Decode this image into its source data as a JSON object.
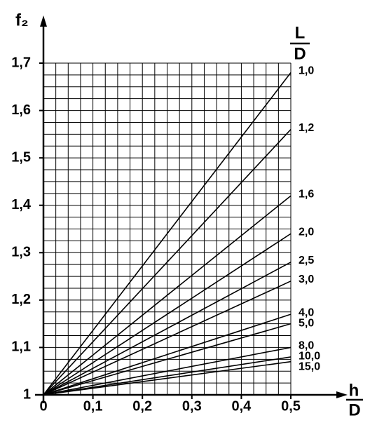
{
  "chart_data": {
    "type": "line",
    "y_label": "f₂",
    "x_label_numerator": "h",
    "x_label_denominator": "D",
    "legend_title_numerator": "L",
    "legend_title_denominator": "D",
    "x": [
      0,
      0.5
    ],
    "series": [
      {
        "name": "1,0",
        "color": "#000000",
        "values": [
          1,
          1.68
        ]
      },
      {
        "name": "1,2",
        "color": "#000000",
        "values": [
          1,
          1.56
        ]
      },
      {
        "name": "1,6",
        "color": "#000000",
        "values": [
          1,
          1.42
        ]
      },
      {
        "name": "2,0",
        "color": "#000000",
        "values": [
          1,
          1.34
        ]
      },
      {
        "name": "2,5",
        "color": "#000000",
        "values": [
          1,
          1.28
        ]
      },
      {
        "name": "3,0",
        "color": "#000000",
        "values": [
          1,
          1.24
        ]
      },
      {
        "name": "4,0",
        "color": "#000000",
        "values": [
          1,
          1.17
        ]
      },
      {
        "name": "5,0",
        "color": "#000000",
        "values": [
          1,
          1.15
        ]
      },
      {
        "name": "8,0",
        "color": "#000000",
        "values": [
          1,
          1.1
        ]
      },
      {
        "name": "10,0",
        "color": "#000000",
        "values": [
          1,
          1.08
        ]
      },
      {
        "name": "15,0",
        "color": "#000000",
        "values": [
          1,
          1.07
        ]
      }
    ],
    "xlim": [
      0,
      0.5
    ],
    "ylim": [
      1,
      1.7
    ],
    "xticks": [
      0,
      {
        "value": 0.1,
        "label": "0,1"
      },
      {
        "value": 0.2,
        "label": "0,2"
      },
      {
        "value": 0.3,
        "label": "0,3"
      },
      {
        "value": 0.4,
        "label": "0,4"
      },
      {
        "value": 0.5,
        "label": "0,5"
      }
    ],
    "yticks": [
      1,
      {
        "value": 1.1,
        "label": "1,1"
      },
      {
        "value": 1.2,
        "label": "1,2"
      },
      {
        "value": 1.3,
        "label": "1,3"
      },
      {
        "value": 1.4,
        "label": "1,4"
      },
      {
        "value": 1.5,
        "label": "1,5"
      },
      {
        "value": 1.6,
        "label": "1,6"
      },
      {
        "value": 1.7,
        "label": "1,7"
      }
    ],
    "xgrid": [
      0,
      0.025,
      0.05,
      0.075,
      0.1,
      0.125,
      0.15,
      0.175,
      0.2,
      0.225,
      0.25,
      0.275,
      0.3,
      0.325,
      0.35,
      0.375,
      0.4,
      0.425,
      0.45,
      0.475,
      0.5
    ],
    "ygrid": [
      1,
      1.025,
      1.05,
      1.075,
      1.1,
      1.125,
      1.15,
      1.175,
      1.2,
      1.225,
      1.25,
      1.275,
      1.3,
      1.325,
      1.35,
      1.375,
      1.4,
      1.425,
      1.45,
      1.475,
      1.5,
      1.525,
      1.55,
      1.575,
      1.6,
      1.625,
      1.65,
      1.675,
      1.7
    ],
    "grid": true
  }
}
